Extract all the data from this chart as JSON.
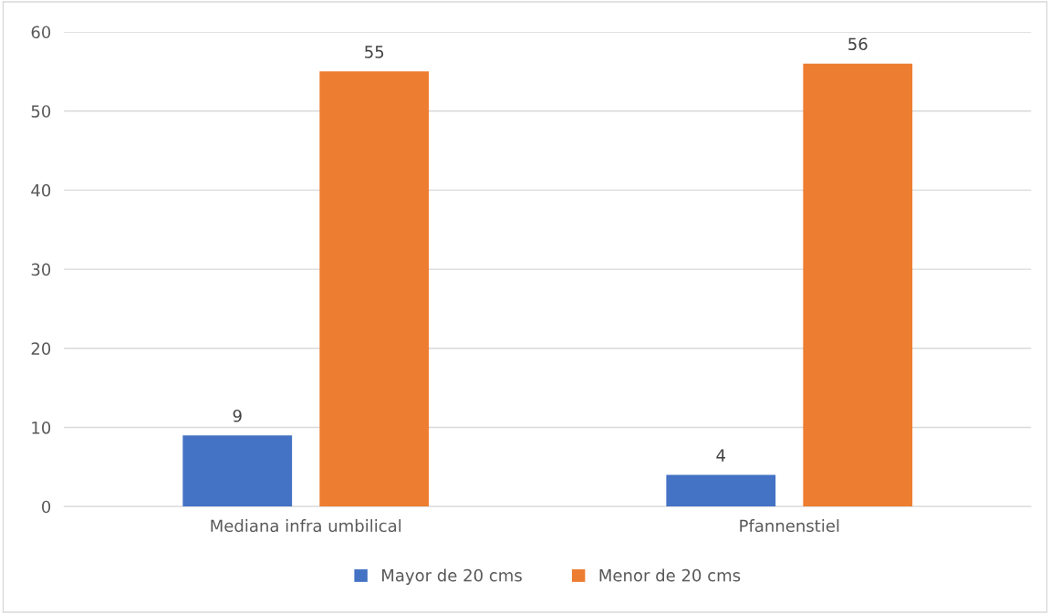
{
  "chart_data": {
    "type": "bar",
    "categories": [
      "Mediana infra umbilical",
      "Pfannenstiel"
    ],
    "series": [
      {
        "name": "Mayor de 20 cms",
        "color": "#4472c4",
        "values": [
          9,
          4
        ]
      },
      {
        "name": "Menor de 20 cms",
        "color": "#ed7d31",
        "values": [
          55,
          56
        ]
      }
    ],
    "ylim": [
      0,
      60
    ],
    "yticks": [
      0,
      10,
      20,
      30,
      40,
      50,
      60
    ],
    "grid": "y",
    "legend": "bottom",
    "data_labels": true
  }
}
